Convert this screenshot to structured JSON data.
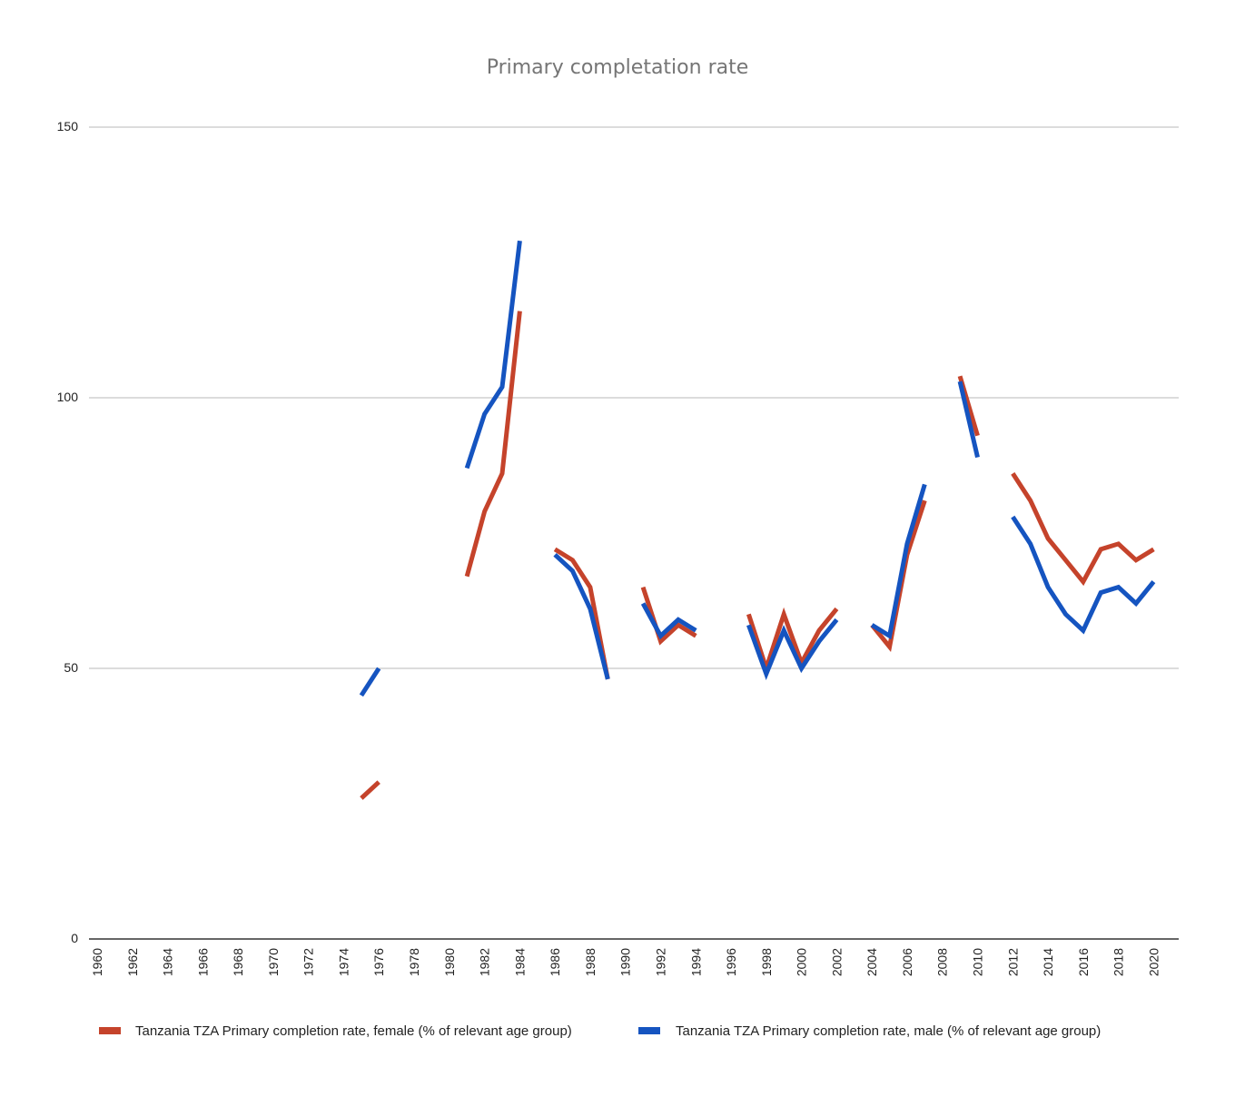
{
  "chart_data": {
    "type": "line",
    "title": "Primary completation rate",
    "xlabel": "",
    "ylabel": "",
    "ylim": [
      0,
      150
    ],
    "yticks": [
      0,
      50,
      100,
      150
    ],
    "grid": true,
    "legend_position": "bottom",
    "x_tick_labels": [
      "1960",
      "1962",
      "1964",
      "1966",
      "1968",
      "1970",
      "1972",
      "1974",
      "1976",
      "1978",
      "1980",
      "1982",
      "1984",
      "1986",
      "1988",
      "1990",
      "1992",
      "1994",
      "1996",
      "1998",
      "2000",
      "2002",
      "2004",
      "2006",
      "2008",
      "2010",
      "2012",
      "2014",
      "2016",
      "2018",
      "2020"
    ],
    "x": [
      1960,
      1961,
      1962,
      1963,
      1964,
      1965,
      1966,
      1967,
      1968,
      1969,
      1970,
      1971,
      1972,
      1973,
      1974,
      1975,
      1976,
      1977,
      1978,
      1979,
      1980,
      1981,
      1982,
      1983,
      1984,
      1985,
      1986,
      1987,
      1988,
      1989,
      1990,
      1991,
      1992,
      1993,
      1994,
      1995,
      1996,
      1997,
      1998,
      1999,
      2000,
      2001,
      2002,
      2003,
      2004,
      2005,
      2006,
      2007,
      2008,
      2009,
      2010,
      2011,
      2012,
      2013,
      2014,
      2015,
      2016,
      2017,
      2018,
      2019,
      2020
    ],
    "series": [
      {
        "name": "Tanzania TZA Primary completion rate, female (% of relevant age group)",
        "color": "#c5432b",
        "values": [
          null,
          null,
          null,
          null,
          null,
          null,
          null,
          null,
          null,
          null,
          null,
          null,
          null,
          null,
          null,
          26,
          29,
          null,
          null,
          null,
          null,
          67,
          79,
          86,
          116,
          null,
          72,
          70,
          65,
          48,
          null,
          65,
          55,
          58,
          56,
          null,
          null,
          60,
          50,
          60,
          51,
          57,
          61,
          null,
          58,
          54,
          71,
          81,
          null,
          104,
          93,
          null,
          86,
          81,
          74,
          70,
          66,
          72,
          73,
          70,
          72
        ]
      },
      {
        "name": "Tanzania TZA Primary completion rate, male (% of relevant age group)",
        "color": "#1554c0",
        "values": [
          null,
          null,
          null,
          null,
          null,
          null,
          null,
          null,
          null,
          null,
          null,
          null,
          null,
          null,
          null,
          45,
          50,
          null,
          null,
          null,
          null,
          87,
          97,
          102,
          129,
          null,
          71,
          68,
          61,
          48,
          null,
          62,
          56,
          59,
          57,
          null,
          null,
          58,
          49,
          57,
          50,
          55,
          59,
          null,
          58,
          56,
          73,
          84,
          null,
          103,
          89,
          null,
          78,
          73,
          65,
          60,
          57,
          64,
          65,
          62,
          66
        ]
      }
    ]
  }
}
